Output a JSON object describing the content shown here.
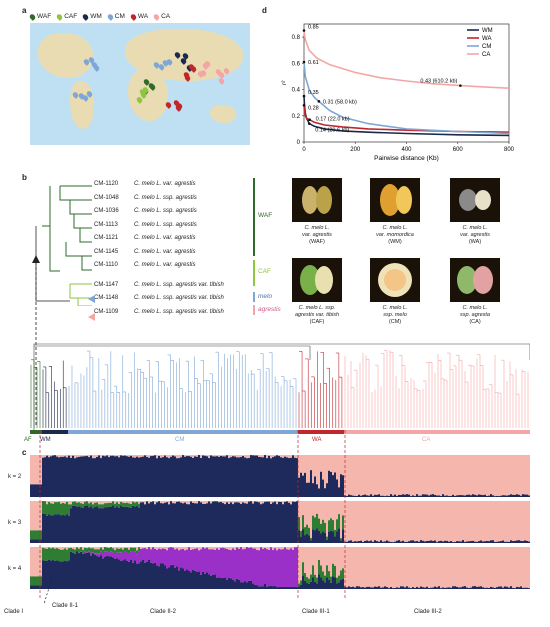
{
  "panel_a": {
    "letter": "a",
    "legend": [
      {
        "label": "WAF",
        "color": "#2e6b2a"
      },
      {
        "label": "CAF",
        "color": "#8dc63f"
      },
      {
        "label": "WM",
        "color": "#1b2a4a"
      },
      {
        "label": "CM",
        "color": "#7fa7d6"
      },
      {
        "label": "WA",
        "color": "#c0272d"
      },
      {
        "label": "CA",
        "color": "#f4a6a6"
      }
    ]
  },
  "panel_b": {
    "letter": "b",
    "accessions": [
      {
        "id": "CM-1120",
        "name": "C. melo L. var. agrestis"
      },
      {
        "id": "CM-1048",
        "name": "C. melo L. ssp. agrestis"
      },
      {
        "id": "CM-1036",
        "name": "C. melo L. ssp. agrestis"
      },
      {
        "id": "CM-1113",
        "name": "C. melo L. ssp. agrestis"
      },
      {
        "id": "CM-1121",
        "name": "C. melo L. var. agrestis"
      },
      {
        "id": "CM-1145",
        "name": "C. melo L. var. agrestis"
      },
      {
        "id": "CM-1110",
        "name": "C. melo L. var. agrestis"
      },
      {
        "id": "CM-1147",
        "name": "C. melo L. ssp. agrestis var. tibish"
      },
      {
        "id": "CM-1148",
        "name": "C. melo L. ssp. agrestis var. tibish"
      },
      {
        "id": "CM-1109",
        "name": "C. melo L. ssp. agrestis var. tibish"
      }
    ],
    "group_labels": {
      "waf": "WAF",
      "caf": "CAF",
      "melo": "melo",
      "agrestis": "agrestis"
    },
    "photos": [
      {
        "line1": "C. melo L.",
        "line2": "var. agrestis",
        "line3": "(WAF)"
      },
      {
        "line1": "C. melo L.",
        "line2": "var. momordica",
        "line3": "(WM)"
      },
      {
        "line1": "C. melo L.",
        "line2": "var. agrestis",
        "line3": "(WA)"
      },
      {
        "line1": "C. melo L. ssp.",
        "line2": "agrestis var. tibish",
        "line3": "(CAF)"
      },
      {
        "line1": "C. melo L.",
        "line2": "ssp. melo",
        "line3": "(CM)"
      },
      {
        "line1": "C. melo L.",
        "line2": "ssp. agresta",
        "line3": "(CA)"
      }
    ],
    "clade_bar_labels": [
      "AF",
      "WM",
      "CM",
      "WA",
      "CA"
    ]
  },
  "panel_c": {
    "letter": "c",
    "k_labels": [
      "k = 2",
      "k = 3",
      "k = 4"
    ],
    "clades": [
      "Clade I",
      "Clade II-1",
      "Clade II-2",
      "Clade III-1",
      "Clade III-2"
    ]
  },
  "panel_d": {
    "letter": "d",
    "chart_data": {
      "type": "line",
      "xlabel": "Pairwise distance (Kb)",
      "ylabel": "r²",
      "xlim": [
        0,
        800
      ],
      "ylim": [
        0,
        0.9
      ],
      "xticks": [
        "0",
        "200",
        "400",
        "600",
        "800"
      ],
      "yticks": [
        "0",
        "0.2",
        "0.4",
        "0.6",
        "0.8"
      ],
      "legend_position": "top-right",
      "series": [
        {
          "name": "WM",
          "color": "#1b2a4a",
          "x": [
            0,
            2,
            5,
            10,
            20.6,
            40,
            80,
            150,
            250,
            400,
            600,
            800
          ],
          "y": [
            0.35,
            0.28,
            0.22,
            0.18,
            0.14,
            0.12,
            0.1,
            0.085,
            0.075,
            0.065,
            0.055,
            0.05
          ]
        },
        {
          "name": "WA",
          "color": "#c0272d",
          "x": [
            0,
            2,
            5,
            10,
            22,
            40,
            80,
            150,
            250,
            400,
            600,
            800
          ],
          "y": [
            0.28,
            0.24,
            0.2,
            0.18,
            0.17,
            0.15,
            0.13,
            0.115,
            0.1,
            0.09,
            0.08,
            0.075
          ]
        },
        {
          "name": "CM",
          "color": "#7fa7d6",
          "x": [
            0,
            5,
            20,
            40,
            58,
            100,
            150,
            250,
            400,
            600,
            800
          ],
          "y": [
            0.61,
            0.5,
            0.4,
            0.34,
            0.31,
            0.24,
            0.19,
            0.14,
            0.1,
            0.08,
            0.065
          ]
        },
        {
          "name": "CA",
          "color": "#f4a6a6",
          "x": [
            0,
            5,
            20,
            50,
            100,
            200,
            300,
            400,
            500,
            610.2,
            700,
            800
          ],
          "y": [
            0.85,
            0.78,
            0.7,
            0.64,
            0.59,
            0.53,
            0.49,
            0.465,
            0.445,
            0.43,
            0.42,
            0.41
          ]
        }
      ],
      "annotations": [
        {
          "text": "0.85",
          "x": 0,
          "y": 0.85
        },
        {
          "text": "0.61",
          "x": 0,
          "y": 0.61
        },
        {
          "text": "0.35",
          "x": 0,
          "y": 0.35
        },
        {
          "text": "0.31 (58.0 kb)",
          "x": 58,
          "y": 0.31
        },
        {
          "text": "0.28",
          "x": 0,
          "y": 0.28
        },
        {
          "text": "0.17 (22.0 kb)",
          "x": 22,
          "y": 0.17
        },
        {
          "text": "0.14 (20.6 kb)",
          "x": 20.6,
          "y": 0.14
        },
        {
          "text": "0.43 (610.2 kb)",
          "x": 610.2,
          "y": 0.43
        }
      ]
    }
  }
}
